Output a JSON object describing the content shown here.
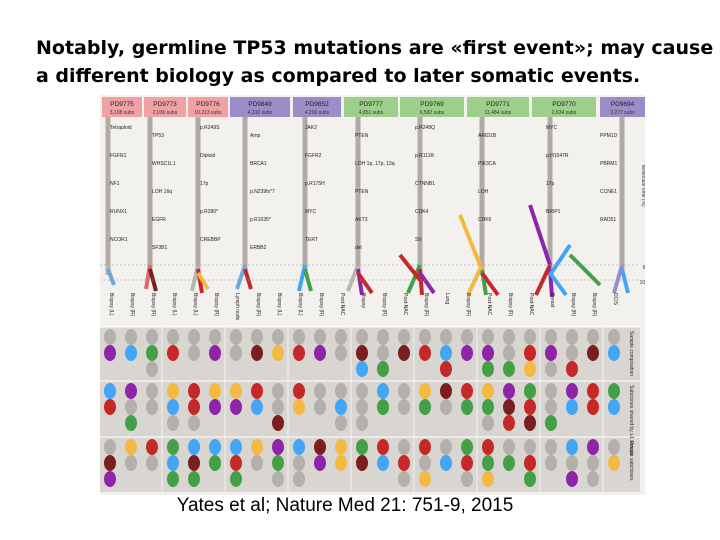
{
  "slide": {
    "title_line1": "Notably, germline TP53 mutations are «first event»; may cause",
    "title_line2": "a different  biology as compared to later somatic events.",
    "citation": "Yates et al; Nature Med 21: 751-9, 2015"
  },
  "figure": {
    "patients": [
      {
        "id": "PD9775",
        "subs": "3,108 subs",
        "color": "#f0a1a5"
      },
      {
        "id": "PD9773",
        "subs": "2,036 subs",
        "color": "#f0a1a5"
      },
      {
        "id": "PD9776",
        "subs": "10,213 subs",
        "color": "#f0a1a5"
      },
      {
        "id": "PD9849",
        "subs": "4,310 subs",
        "color": "#9b8dc7"
      },
      {
        "id": "PD9852",
        "subs": "4,200 subs",
        "color": "#9b8dc7"
      },
      {
        "id": "PD9777",
        "subs": "4,851 subs",
        "color": "#9ccf8a"
      },
      {
        "id": "PD9769",
        "subs": "6,582 subs",
        "color": "#9ccf8a"
      },
      {
        "id": "PD9771",
        "subs": "11,484 subs",
        "color": "#9ccf8a"
      },
      {
        "id": "PD9770",
        "subs": "2,634 subs",
        "color": "#9ccf8a"
      },
      {
        "id": "PD9694",
        "subs": "3,277 subs",
        "color": "#9b8dc7"
      }
    ],
    "axis_right": {
      "label": "Molecular time (%)",
      "tick_top": "0",
      "tick_mid": "95",
      "tick_bottom": "100"
    },
    "row_labels": {
      "sample": "Sample composition",
      "subclones": "Subclones shared by ≥1 sample",
      "private": "Private subclones"
    },
    "event_annotations": [
      "Tetraploid",
      "TP53",
      "p.R249S",
      "Amp",
      "JAK2",
      "PTEN",
      "p.R248Q",
      "ARID1B",
      "MYC",
      "PPM1D",
      "FGFR1",
      "WHSC1L1",
      "Diploid",
      "BRCA1",
      "FGFR2",
      "LOH 1p, 17p, 13q",
      "p.R111R",
      "PIK3CA",
      "p.H1047R",
      "PBRM1",
      "NF1",
      "LOH 16q",
      "17p",
      "p.N239fs*7",
      "p.R175H",
      "PTEN",
      "CTNNB1",
      "LOH",
      "17p",
      "CCNE1",
      "RUNX1",
      "EGFR",
      "p.R280*",
      "p.R1035*",
      "MYC",
      "AKT3",
      "CDK4",
      "CDK6",
      "BRIP1",
      "RAD51",
      "NCOR1",
      "SF3B1",
      "CREBBP",
      "ERBB2",
      "TERT",
      "del",
      "SV"
    ],
    "sample_labels": [
      "Biopsy (L)",
      "Biopsy (R)",
      "Biopsy (R)",
      "Biopsy (L)",
      "Biopsy (L)",
      "Biopsy (R)",
      "Lymph node",
      "Biopsy (R)",
      "Biopsy (L)",
      "Biopsy (L)",
      "Biopsy (R)",
      "Post-NAC",
      "Biopsy",
      "Biopsy (R)",
      "Post-NAC",
      "Biopsy (R)",
      "Lung",
      "Biopsy (R)",
      "Post-NAC",
      "Biopsy (R)",
      "Post-NAC",
      "Breast",
      "Biopsy (R)",
      "Biopsy (R)",
      "DCIS"
    ]
  }
}
